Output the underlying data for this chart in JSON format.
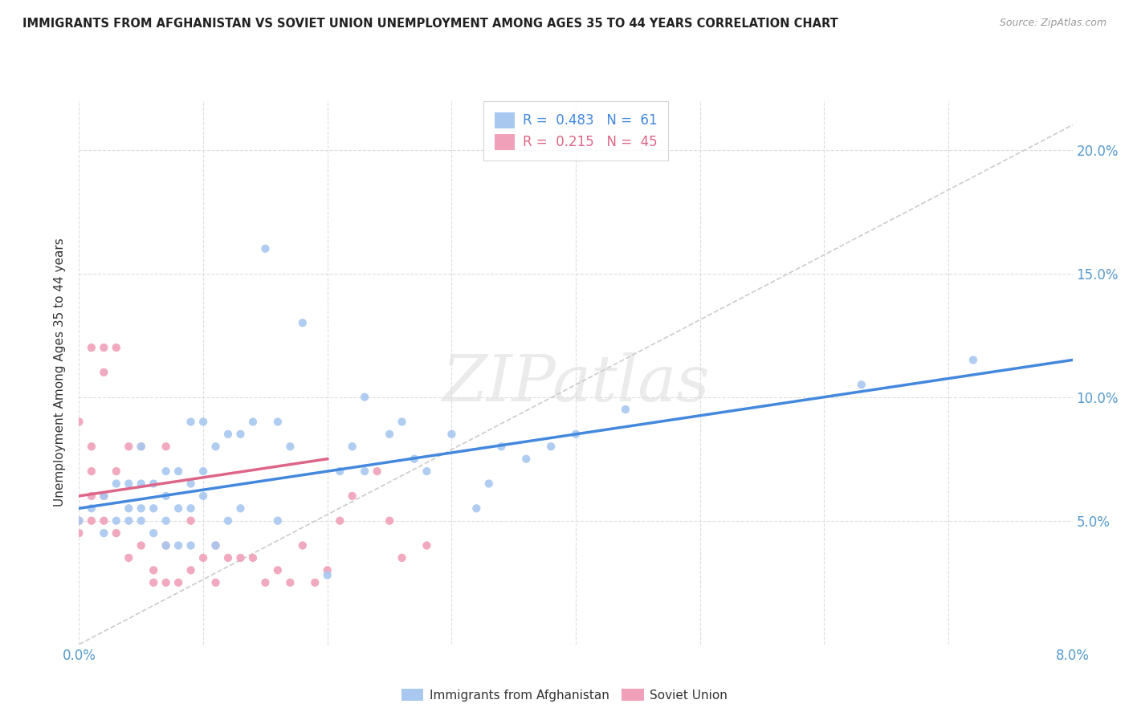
{
  "title": "IMMIGRANTS FROM AFGHANISTAN VS SOVIET UNION UNEMPLOYMENT AMONG AGES 35 TO 44 YEARS CORRELATION CHART",
  "source": "Source: ZipAtlas.com",
  "ylabel": "Unemployment Among Ages 35 to 44 years",
  "xlim": [
    0.0,
    0.08
  ],
  "ylim": [
    0.0,
    0.22
  ],
  "xticks": [
    0.0,
    0.01,
    0.02,
    0.03,
    0.04,
    0.05,
    0.06,
    0.07,
    0.08
  ],
  "yticks": [
    0.0,
    0.05,
    0.1,
    0.15,
    0.2
  ],
  "afghanistan_R": 0.483,
  "afghanistan_N": 61,
  "soviet_R": 0.215,
  "soviet_N": 45,
  "afghanistan_color": "#a8c8f0",
  "soviet_color": "#f0a0b8",
  "afghanistan_line_color": "#4488dd",
  "soviet_line_color": "#dd6688",
  "diagonal_color": "#cccccc",
  "background_color": "#ffffff",
  "grid_color": "#dddddd",
  "watermark": "ZIPatlas",
  "afghanistan_x": [
    0.0,
    0.001,
    0.002,
    0.002,
    0.003,
    0.003,
    0.004,
    0.004,
    0.004,
    0.005,
    0.005,
    0.005,
    0.005,
    0.006,
    0.006,
    0.006,
    0.007,
    0.007,
    0.007,
    0.007,
    0.008,
    0.008,
    0.008,
    0.009,
    0.009,
    0.009,
    0.009,
    0.01,
    0.01,
    0.01,
    0.011,
    0.011,
    0.012,
    0.012,
    0.013,
    0.013,
    0.014,
    0.015,
    0.016,
    0.016,
    0.017,
    0.018,
    0.02,
    0.021,
    0.022,
    0.023,
    0.023,
    0.025,
    0.026,
    0.027,
    0.028,
    0.03,
    0.032,
    0.033,
    0.034,
    0.036,
    0.038,
    0.04,
    0.044,
    0.063,
    0.072
  ],
  "afghanistan_y": [
    0.05,
    0.055,
    0.045,
    0.06,
    0.05,
    0.065,
    0.05,
    0.055,
    0.065,
    0.05,
    0.055,
    0.065,
    0.08,
    0.045,
    0.055,
    0.065,
    0.04,
    0.05,
    0.06,
    0.07,
    0.04,
    0.055,
    0.07,
    0.04,
    0.055,
    0.065,
    0.09,
    0.06,
    0.07,
    0.09,
    0.04,
    0.08,
    0.05,
    0.085,
    0.055,
    0.085,
    0.09,
    0.16,
    0.05,
    0.09,
    0.08,
    0.13,
    0.028,
    0.07,
    0.08,
    0.07,
    0.1,
    0.085,
    0.09,
    0.075,
    0.07,
    0.085,
    0.055,
    0.065,
    0.08,
    0.075,
    0.08,
    0.085,
    0.095,
    0.105,
    0.115
  ],
  "soviet_x": [
    0.0,
    0.0,
    0.0,
    0.001,
    0.001,
    0.001,
    0.001,
    0.001,
    0.002,
    0.002,
    0.002,
    0.002,
    0.003,
    0.003,
    0.003,
    0.004,
    0.004,
    0.005,
    0.005,
    0.006,
    0.006,
    0.007,
    0.007,
    0.007,
    0.008,
    0.009,
    0.009,
    0.01,
    0.011,
    0.011,
    0.012,
    0.013,
    0.014,
    0.015,
    0.016,
    0.017,
    0.018,
    0.019,
    0.02,
    0.021,
    0.022,
    0.024,
    0.025,
    0.026,
    0.028
  ],
  "soviet_y": [
    0.045,
    0.05,
    0.09,
    0.05,
    0.06,
    0.07,
    0.08,
    0.12,
    0.05,
    0.06,
    0.11,
    0.12,
    0.045,
    0.07,
    0.12,
    0.035,
    0.08,
    0.04,
    0.08,
    0.025,
    0.03,
    0.025,
    0.04,
    0.08,
    0.025,
    0.03,
    0.05,
    0.035,
    0.025,
    0.04,
    0.035,
    0.035,
    0.035,
    0.025,
    0.03,
    0.025,
    0.04,
    0.025,
    0.03,
    0.05,
    0.06,
    0.07,
    0.05,
    0.035,
    0.04
  ],
  "afg_line_x": [
    0.0,
    0.08
  ],
  "afg_line_y": [
    0.055,
    0.115
  ],
  "sov_line_x": [
    0.0,
    0.02
  ],
  "sov_line_y": [
    0.06,
    0.075
  ]
}
